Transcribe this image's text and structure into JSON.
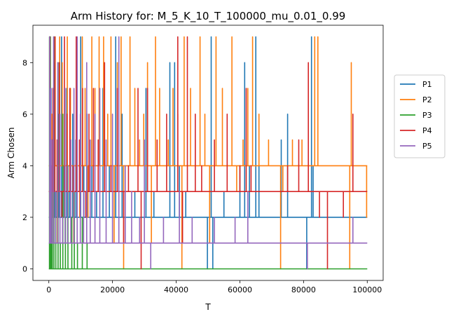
{
  "chart_data": {
    "type": "line",
    "step": true,
    "title": "Arm History for: M_5_K_10_T_100000_mu_0.01_0.99",
    "xlabel": "T",
    "ylabel": "Arm Chosen",
    "xlim": [
      -5000,
      105000
    ],
    "ylim": [
      -0.45,
      9.45
    ],
    "xticks": [
      0,
      20000,
      40000,
      60000,
      80000,
      100000
    ],
    "xtick_labels": [
      "0",
      "20000",
      "40000",
      "60000",
      "80000",
      "100000"
    ],
    "yticks": [
      0,
      2,
      4,
      6,
      8
    ],
    "ytick_labels": [
      "0",
      "2",
      "4",
      "6",
      "8"
    ],
    "legend_position": "outside-right",
    "series": [
      {
        "name": "P1",
        "color": "#1f77b4",
        "base": 2,
        "spikes": [
          [
            300,
            9
          ],
          [
            700,
            7
          ],
          [
            1200,
            5
          ],
          [
            1800,
            8
          ],
          [
            2500,
            3
          ],
          [
            3200,
            6
          ],
          [
            4000,
            9
          ],
          [
            4800,
            4
          ],
          [
            5600,
            7
          ],
          [
            6500,
            3
          ],
          [
            7500,
            6
          ],
          [
            8500,
            5
          ],
          [
            10000,
            9
          ],
          [
            11000,
            4
          ],
          [
            12000,
            6
          ],
          [
            13500,
            5
          ],
          [
            15000,
            3
          ],
          [
            17000,
            7
          ],
          [
            19000,
            4
          ],
          [
            21000,
            9
          ],
          [
            23000,
            6
          ],
          [
            27000,
            3
          ],
          [
            30500,
            7
          ],
          [
            33000,
            3
          ],
          [
            38000,
            8
          ],
          [
            39500,
            8
          ],
          [
            41000,
            4
          ],
          [
            43000,
            3
          ],
          [
            49800,
            0
          ],
          [
            51000,
            9
          ],
          [
            51500,
            0
          ],
          [
            55000,
            3
          ],
          [
            60000,
            4
          ],
          [
            61500,
            8
          ],
          [
            63000,
            4
          ],
          [
            65000,
            9
          ],
          [
            66000,
            4
          ],
          [
            73000,
            5
          ],
          [
            75000,
            6
          ],
          [
            81000,
            0
          ],
          [
            82500,
            9
          ],
          [
            83000,
            4
          ]
        ]
      },
      {
        "name": "P2",
        "color": "#ff7f0e",
        "base": 4,
        "spikes": [
          [
            400,
            8
          ],
          [
            900,
            6
          ],
          [
            1400,
            2
          ],
          [
            2000,
            9
          ],
          [
            2700,
            1
          ],
          [
            3400,
            9
          ],
          [
            4200,
            8
          ],
          [
            5000,
            2
          ],
          [
            5800,
            9
          ],
          [
            6800,
            7
          ],
          [
            7800,
            1
          ],
          [
            8800,
            8
          ],
          [
            9700,
            2
          ],
          [
            10500,
            9
          ],
          [
            11400,
            7
          ],
          [
            12300,
            2
          ],
          [
            13500,
            9
          ],
          [
            14500,
            7
          ],
          [
            15800,
            9
          ],
          [
            17200,
            9
          ],
          [
            18500,
            6
          ],
          [
            19500,
            9
          ],
          [
            20500,
            1
          ],
          [
            21500,
            8
          ],
          [
            22700,
            9
          ],
          [
            23500,
            0
          ],
          [
            25500,
            9
          ],
          [
            27000,
            7
          ],
          [
            28500,
            5
          ],
          [
            29800,
            6
          ],
          [
            31000,
            8
          ],
          [
            32200,
            1
          ],
          [
            33500,
            9
          ],
          [
            34800,
            7
          ],
          [
            36000,
            4
          ],
          [
            37500,
            5
          ],
          [
            39000,
            7
          ],
          [
            40500,
            6
          ],
          [
            41800,
            0
          ],
          [
            42500,
            9
          ],
          [
            44500,
            7
          ],
          [
            46000,
            5
          ],
          [
            47500,
            9
          ],
          [
            49000,
            6
          ],
          [
            50500,
            1
          ],
          [
            52500,
            9
          ],
          [
            54500,
            7
          ],
          [
            56000,
            5
          ],
          [
            57500,
            9
          ],
          [
            59000,
            3
          ],
          [
            61000,
            5
          ],
          [
            62500,
            7
          ],
          [
            64000,
            9
          ],
          [
            66000,
            6
          ],
          [
            69000,
            5
          ],
          [
            72800,
            0
          ],
          [
            73500,
            3
          ],
          [
            76500,
            5
          ],
          [
            79500,
            5
          ],
          [
            83500,
            9
          ],
          [
            84500,
            9
          ],
          [
            94500,
            0
          ],
          [
            95000,
            8
          ],
          [
            99800,
            2
          ]
        ]
      },
      {
        "name": "P3",
        "color": "#2ca02c",
        "base": 0,
        "spikes": [
          [
            200,
            9
          ],
          [
            500,
            9
          ],
          [
            800,
            3
          ],
          [
            1100,
            5
          ],
          [
            1600,
            9
          ],
          [
            2200,
            2
          ],
          [
            2900,
            8
          ],
          [
            3600,
            1
          ],
          [
            4400,
            6
          ],
          [
            5200,
            2
          ],
          [
            6000,
            4
          ],
          [
            7200,
            2
          ],
          [
            8000,
            3
          ],
          [
            9000,
            1
          ],
          [
            10500,
            2
          ],
          [
            12000,
            1
          ]
        ]
      },
      {
        "name": "P4",
        "color": "#d62728",
        "base": 3,
        "spikes": [
          [
            350,
            9
          ],
          [
            750,
            4
          ],
          [
            1300,
            7
          ],
          [
            1900,
            9
          ],
          [
            2600,
            5
          ],
          [
            3300,
            8
          ],
          [
            4100,
            2
          ],
          [
            4900,
            9
          ],
          [
            5700,
            6
          ],
          [
            6600,
            7
          ],
          [
            7600,
            4
          ],
          [
            8600,
            9
          ],
          [
            9600,
            5
          ],
          [
            10600,
            7
          ],
          [
            11600,
            2
          ],
          [
            12600,
            6
          ],
          [
            14000,
            7
          ],
          [
            15500,
            5
          ],
          [
            17500,
            8
          ],
          [
            19500,
            4
          ],
          [
            21500,
            7
          ],
          [
            23500,
            1
          ],
          [
            25000,
            4
          ],
          [
            28000,
            7
          ],
          [
            29000,
            0
          ],
          [
            31000,
            7
          ],
          [
            34000,
            5
          ],
          [
            37000,
            6
          ],
          [
            40500,
            9
          ],
          [
            42000,
            1
          ],
          [
            43500,
            9
          ],
          [
            46000,
            6
          ],
          [
            48000,
            4
          ],
          [
            52000,
            5
          ],
          [
            56000,
            6
          ],
          [
            60000,
            4
          ],
          [
            62000,
            7
          ],
          [
            63500,
            4
          ],
          [
            75000,
            4
          ],
          [
            78500,
            5
          ],
          [
            81500,
            8
          ],
          [
            85000,
            2
          ],
          [
            87500,
            0
          ],
          [
            92500,
            2
          ],
          [
            95500,
            6
          ]
        ]
      },
      {
        "name": "P5",
        "color": "#9467bd",
        "base": 1,
        "spikes": [
          [
            250,
            9
          ],
          [
            600,
            7
          ],
          [
            1000,
            5
          ],
          [
            1500,
            9
          ],
          [
            2100,
            3
          ],
          [
            2800,
            8
          ],
          [
            3500,
            6
          ],
          [
            4300,
            2
          ],
          [
            5100,
            7
          ],
          [
            5900,
            4
          ],
          [
            6900,
            5
          ],
          [
            7900,
            7
          ],
          [
            8900,
            9
          ],
          [
            9900,
            6
          ],
          [
            10900,
            3
          ],
          [
            11900,
            8
          ],
          [
            13000,
            5
          ],
          [
            14500,
            6
          ],
          [
            16000,
            7
          ],
          [
            18000,
            5
          ],
          [
            20000,
            6
          ],
          [
            22000,
            9
          ],
          [
            24000,
            4
          ],
          [
            26000,
            3
          ],
          [
            28500,
            2
          ],
          [
            30000,
            5
          ],
          [
            32000,
            0
          ],
          [
            36000,
            2
          ],
          [
            41000,
            3
          ],
          [
            45000,
            2
          ],
          [
            52000,
            2
          ],
          [
            58500,
            2
          ],
          [
            62500,
            3
          ],
          [
            81200,
            0
          ],
          [
            95500,
            2
          ]
        ]
      }
    ]
  }
}
